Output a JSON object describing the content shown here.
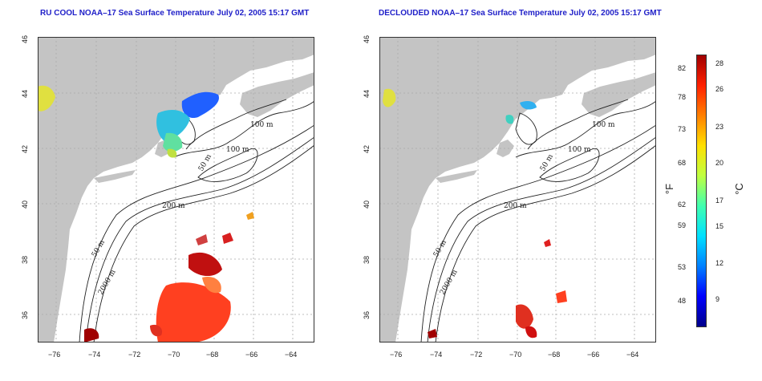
{
  "panels": [
    {
      "id": "left",
      "title": "RU COOL NOAA–17 Sea Surface Temperature July 02, 2005 15:17 GMT",
      "contour_labels": [
        "100 m",
        "100 m",
        "50 m",
        "200 m",
        "50 m",
        "2000 m"
      ]
    },
    {
      "id": "right",
      "title": "DECLOUDED NOAA–17 Sea Surface Temperature July 02, 2005 15:17 GMT",
      "contour_labels": [
        "100 m",
        "100 m",
        "50 m",
        "200 m",
        "50 m",
        "2000 m"
      ]
    }
  ],
  "axes": {
    "lon_ticks": [
      "−76",
      "−74",
      "−72",
      "−70",
      "−68",
      "−66",
      "−64"
    ],
    "lat_ticks": [
      "46",
      "44",
      "42",
      "40",
      "38",
      "36"
    ]
  },
  "colorbar": {
    "fahrenheit_ticks": [
      "82",
      "78",
      "73",
      "68",
      "62",
      "59",
      "53",
      "48"
    ],
    "celsius_ticks": [
      "28",
      "26",
      "23",
      "20",
      "17",
      "15",
      "12",
      "9"
    ],
    "fahrenheit_unit": "°F",
    "celsius_unit": "°C",
    "colors": [
      "#00008b",
      "#0000ff",
      "#0080ff",
      "#00e0ff",
      "#40ffb0",
      "#c0ff40",
      "#ffe000",
      "#ff8000",
      "#ff2000",
      "#a00000"
    ]
  },
  "colors": {
    "land": "#c4c4c4",
    "ocean": "#ffffff",
    "title": "#1e1ec8",
    "grid": "#aaaaaa"
  }
}
